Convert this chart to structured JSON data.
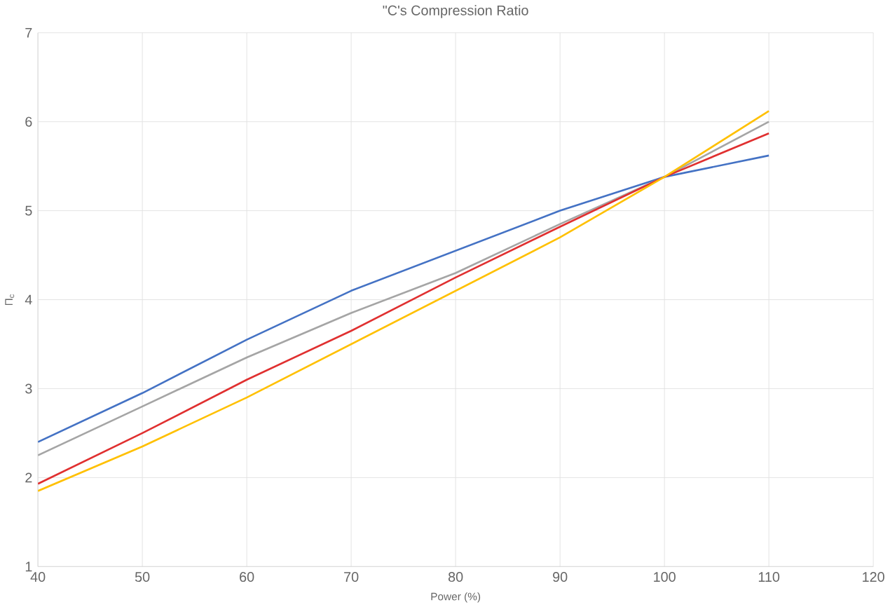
{
  "chart_data": {
    "type": "line",
    "title": "\"C's Compression Ratio",
    "xlabel": "Power (%)",
    "ylabel": "Π$_{c}$",
    "x": [
      40,
      50,
      60,
      70,
      80,
      90,
      100,
      110
    ],
    "series": [
      {
        "color": "#4472c4",
        "values": [
          2.4,
          2.95,
          3.55,
          4.1,
          4.55,
          5.0,
          5.38,
          5.62
        ]
      },
      {
        "color": "#a5a5a5",
        "values": [
          2.25,
          2.8,
          3.35,
          3.85,
          4.3,
          4.85,
          5.38,
          6.0
        ]
      },
      {
        "color": "#e03030",
        "values": [
          1.93,
          2.5,
          3.1,
          3.65,
          4.25,
          4.82,
          5.38,
          5.87
        ]
      },
      {
        "color": "#ffc000",
        "values": [
          1.85,
          2.35,
          2.9,
          3.5,
          4.1,
          4.7,
          5.38,
          6.12
        ]
      }
    ],
    "xlim": [
      40,
      120
    ],
    "ylim": [
      1,
      7
    ],
    "xticks": [
      40,
      50,
      60,
      70,
      80,
      90,
      100,
      110,
      120
    ],
    "yticks": [
      1,
      2,
      3,
      4,
      5,
      6,
      7
    ],
    "grid": true,
    "marker": "none",
    "line_style": "solid"
  }
}
